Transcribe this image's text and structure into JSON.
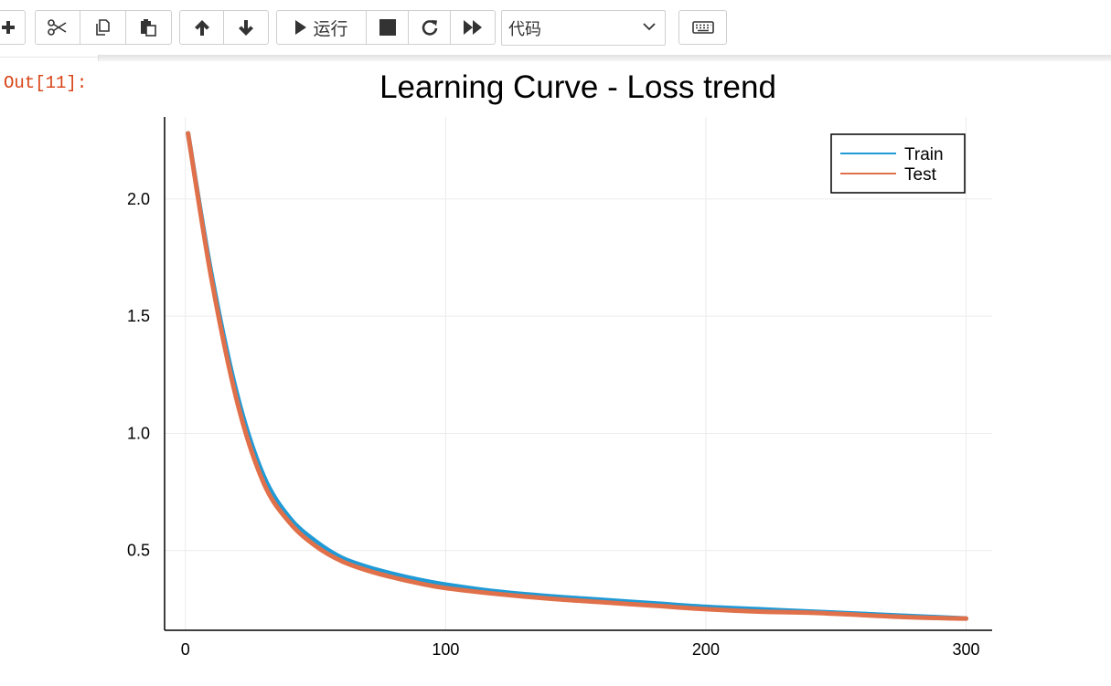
{
  "toolbar": {
    "run_label": "运行",
    "cell_type_value": "代码",
    "icons": [
      "plus-icon",
      "scissors-icon",
      "copy-icon",
      "paste-icon",
      "arrow-up-icon",
      "arrow-down-icon",
      "play-icon",
      "stop-icon",
      "restart-icon",
      "fast-forward-icon",
      "keyboard-icon"
    ]
  },
  "output": {
    "prompt": "Out[11]:"
  },
  "colors": {
    "train": "#1f9ad6",
    "test": "#e0704a",
    "prompt": "#d84315"
  },
  "chart_data": {
    "type": "line",
    "title": "Learning Curve - Loss trend",
    "xlabel": "",
    "ylabel": "",
    "xlim": [
      -8,
      310
    ],
    "ylim": [
      0.16,
      2.35
    ],
    "xticks": [
      0,
      100,
      200,
      300
    ],
    "yticks": [
      0.5,
      1.0,
      1.5,
      2.0
    ],
    "xtick_labels": [
      "0",
      "100",
      "200",
      "300"
    ],
    "ytick_labels": [
      "0.5",
      "1.0",
      "1.5",
      "2.0"
    ],
    "grid": true,
    "legend_position": "top-right",
    "series": [
      {
        "name": "Train",
        "x": [
          1,
          10,
          20,
          30,
          40,
          50,
          60,
          70,
          80,
          90,
          100,
          120,
          140,
          160,
          180,
          200,
          220,
          240,
          260,
          280,
          300
        ],
        "values": [
          2.28,
          1.68,
          1.16,
          0.82,
          0.64,
          0.54,
          0.47,
          0.43,
          0.4,
          0.375,
          0.355,
          0.325,
          0.305,
          0.29,
          0.275,
          0.26,
          0.25,
          0.24,
          0.23,
          0.22,
          0.21
        ]
      },
      {
        "name": "Test",
        "x": [
          1,
          10,
          20,
          30,
          40,
          50,
          60,
          70,
          80,
          90,
          100,
          120,
          140,
          160,
          180,
          200,
          220,
          240,
          260,
          280,
          300
        ],
        "values": [
          2.28,
          1.66,
          1.13,
          0.79,
          0.62,
          0.52,
          0.455,
          0.415,
          0.385,
          0.36,
          0.34,
          0.315,
          0.295,
          0.28,
          0.265,
          0.25,
          0.24,
          0.235,
          0.225,
          0.215,
          0.21
        ]
      }
    ]
  }
}
